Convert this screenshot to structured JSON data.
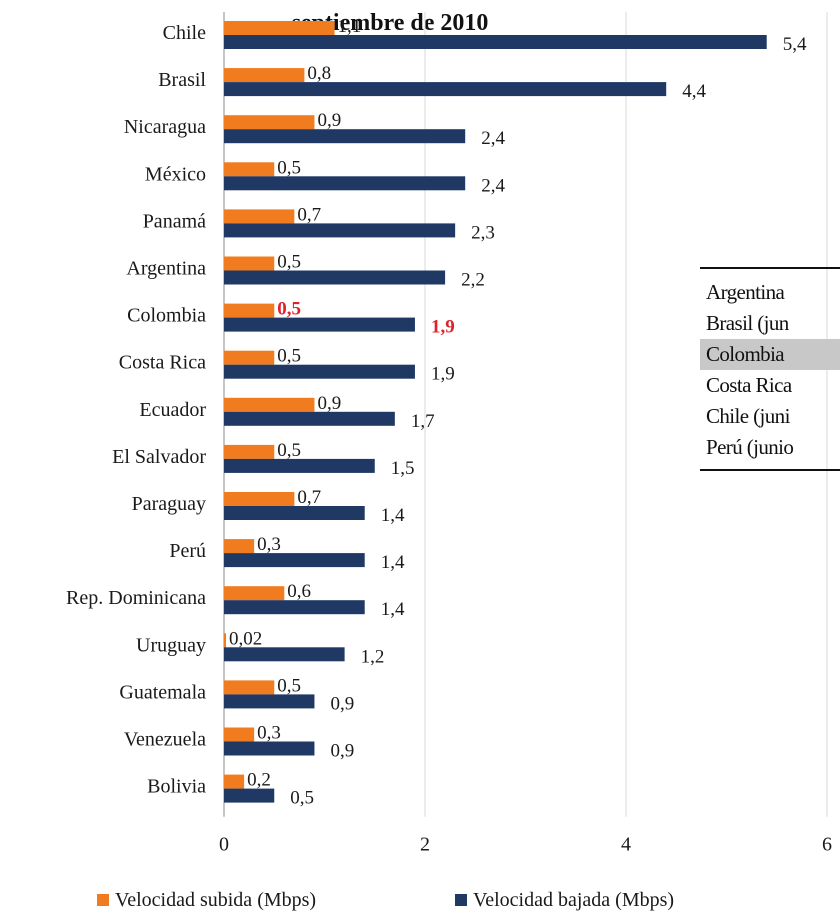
{
  "title": "septiembre de 2010",
  "colors": {
    "subida": "#f07c1f",
    "bajada": "#1f3864",
    "highlight": "#e0202a",
    "table_highlight": "#c8c8c8"
  },
  "highlight_category": "Colombia",
  "chart_data": {
    "type": "bar",
    "orientation": "horizontal",
    "title": "septiembre de 2010",
    "categories": [
      "Chile",
      "Brasil",
      "Nicaragua",
      "México",
      "Panamá",
      "Argentina",
      "Colombia",
      "Costa Rica",
      "Ecuador",
      "El Salvador",
      "Paraguay",
      "Perú",
      "Rep. Dominicana",
      "Uruguay",
      "Guatemala",
      "Venezuela",
      "Bolivia"
    ],
    "series": [
      {
        "name": "Velocidad subida (Mbps)",
        "values": [
          1.1,
          0.8,
          0.9,
          0.5,
          0.7,
          0.5,
          0.5,
          0.5,
          0.9,
          0.5,
          0.7,
          0.3,
          0.6,
          0.02,
          0.5,
          0.3,
          0.2
        ],
        "labels": [
          "1,1",
          "0,8",
          "0,9",
          "0,5",
          "0,7",
          "0,5",
          "0,5",
          "0,5",
          "0,9",
          "0,5",
          "0,7",
          "0,3",
          "0,6",
          "0,02",
          "0,5",
          "0,3",
          "0,2"
        ]
      },
      {
        "name": "Velocidad bajada (Mbps)",
        "values": [
          5.4,
          4.4,
          2.4,
          2.4,
          2.3,
          2.2,
          1.9,
          1.9,
          1.7,
          1.5,
          1.4,
          1.4,
          1.4,
          1.2,
          0.9,
          0.9,
          0.5
        ],
        "labels": [
          "5,4",
          "4,4",
          "2,4",
          "2,4",
          "2,3",
          "2,2",
          "1,9",
          "1,9",
          "1,7",
          "1,5",
          "1,4",
          "1,4",
          "1,4",
          "1,2",
          "0,9",
          "0,9",
          "0,5"
        ]
      }
    ],
    "xlim": [
      0,
      6
    ],
    "xticks": [
      "0",
      "2",
      "4",
      "6"
    ],
    "grid": true,
    "legend_position": "bottom"
  },
  "side_table": {
    "rows": [
      "Argentina",
      "Brasil (jun",
      "Colombia",
      "Costa Rica",
      "Chile (juni",
      "Perú (junio"
    ],
    "highlight_row": 2
  }
}
